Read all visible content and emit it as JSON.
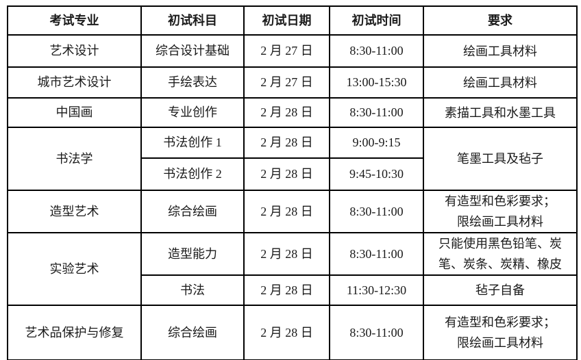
{
  "page": {
    "background_color": "#ffffff",
    "text_color": "#1a1a1a",
    "border_color": "#000000"
  },
  "table": {
    "headers": [
      "考试专业",
      "初试科目",
      "初试日期",
      "初试时间",
      "要求"
    ],
    "rows": [
      {
        "major": "艺术设计",
        "subject": "综合设计基础",
        "date": "2 月 27 日",
        "time": "8:30-11:00",
        "requirement": "绘画工具材料"
      },
      {
        "major": "城市艺术设计",
        "subject": "手绘表达",
        "date": "2 月 27 日",
        "time": "13:00-15:30",
        "requirement": "绘画工具材料"
      },
      {
        "major": "中国画",
        "subject": "专业创作",
        "date": "2 月 28 日",
        "time": "8:30-11:00",
        "requirement": "素描工具和水墨工具"
      },
      {
        "major": "书法学",
        "subject": "书法创作 1",
        "date": "2 月 28 日",
        "time": "9:00-9:15",
        "requirement": "笔墨工具及毡子"
      },
      {
        "subject": "书法创作 2",
        "date": "2 月 28 日",
        "time": "9:45-10:30"
      },
      {
        "major": "造型艺术",
        "subject": "综合绘画",
        "date": "2 月 28 日",
        "time": "8:30-11:00",
        "requirement": "有造型和色彩要求；\n限绘画工具材料"
      },
      {
        "major": "实验艺术",
        "subject": "造型能力",
        "date": "2 月 28 日",
        "time": "8:30-11:00",
        "requirement": "只能使用黑色铅笔、炭笔、炭条、炭精、橡皮"
      },
      {
        "subject": "书法",
        "date": "2 月 28 日",
        "time": "11:30-12:30",
        "requirement": "毡子自备"
      },
      {
        "major": "艺术品保护与修复",
        "subject": "综合绘画",
        "date": "2 月 28 日",
        "time": "8:30-11:00",
        "requirement": "有造型和色彩要求；\n限绘画工具材料"
      }
    ]
  }
}
